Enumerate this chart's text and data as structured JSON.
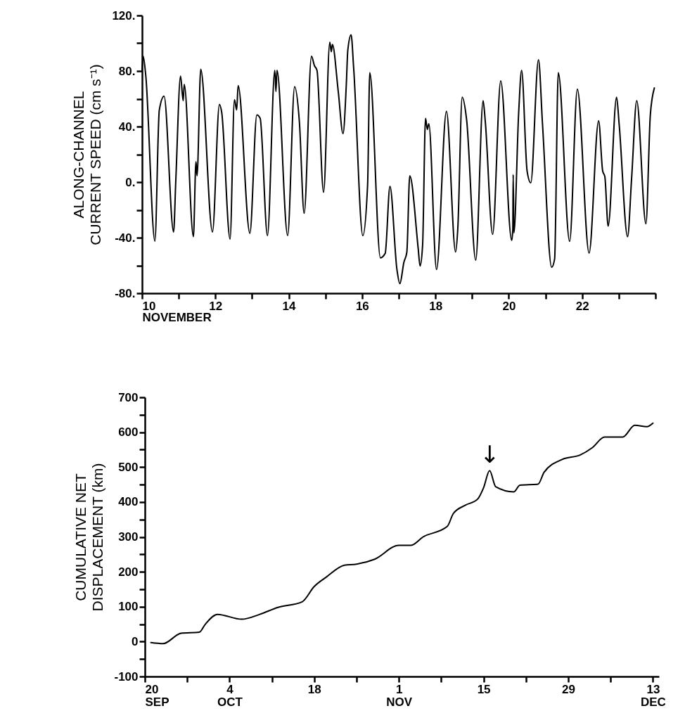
{
  "chart_data": [
    {
      "type": "line",
      "xlabel": "NOVEMBER",
      "ylabel": "ALONG-CHANNEL\nCURRENT SPEED (cm s⁻¹)",
      "color": "#000000",
      "x": [
        10.0,
        10.03,
        10.1,
        10.35,
        10.47,
        10.6,
        10.86,
        10.92,
        11.05,
        11.12,
        11.15,
        11.4,
        11.47,
        11.5,
        11.6,
        11.92,
        12.11,
        12.17,
        12.4,
        12.52,
        12.58,
        12.62,
        12.94,
        13.13,
        13.22,
        13.42,
        13.62,
        13.65,
        13.68,
        13.97,
        14.16,
        14.29,
        14.42,
        14.62,
        14.7,
        14.77,
        14.95,
        15.12,
        15.16,
        15.19,
        15.35,
        15.48,
        15.57,
        15.61,
        15.7,
        15.77,
        16.02,
        16.15,
        16.21,
        16.5,
        16.63,
        16.76,
        16.95,
        17.03,
        17.14,
        17.22,
        17.3,
        17.53,
        17.58,
        17.65,
        17.73,
        17.78,
        17.82,
        18.03,
        18.3,
        18.55,
        18.61,
        18.73,
        18.85,
        19.1,
        19.3,
        19.36,
        19.56,
        19.78,
        20.08,
        20.11,
        20.12,
        20.14,
        20.27,
        20.35,
        20.5,
        20.6,
        20.81,
        20.92,
        21.17,
        21.25,
        21.35,
        21.66,
        21.87,
        22.19,
        22.45,
        22.56,
        22.62,
        22.71,
        22.94,
        23.01,
        23.24,
        23.35,
        23.49,
        23.74,
        23.86,
        23.97
      ],
      "values": [
        80.5,
        90.6,
        77,
        -42.5,
        51.8,
        61.9,
        -35.9,
        1.2,
        76.3,
        58.6,
        70.4,
        -39.3,
        14.7,
        4.6,
        81.3,
        -35.9,
        56,
        50.6,
        -41,
        59.4,
        52,
        69.5,
        -36.8,
        48.4,
        46,
        -38.5,
        80.5,
        65.3,
        80.5,
        -38.5,
        68.7,
        43.4,
        -22.4,
        90.6,
        83.9,
        80.5,
        -7.3,
        100.8,
        93.9,
        99.1,
        65.3,
        34.9,
        70.4,
        94.8,
        106.1,
        82.2,
        -38.5,
        -2.2,
        78.8,
        -54.5,
        -51.3,
        -3,
        -62.9,
        -73.1,
        -57.7,
        -50.5,
        4.6,
        -47.8,
        -60.4,
        -45.5,
        45.9,
        38,
        42,
        -62.9,
        51,
        -50.3,
        -33.4,
        61.1,
        45,
        -56.2,
        58.6,
        43.5,
        -37.6,
        72.9,
        -41.9,
        -34.2,
        5.4,
        -36.6,
        50.1,
        80.5,
        7.9,
        -0.5,
        88.1,
        41.7,
        -61.3,
        -55.4,
        78.8,
        -42.7,
        67,
        -51.1,
        44.2,
        8.1,
        3.9,
        -31.7,
        61.1,
        41.7,
        -39.3,
        2.9,
        58.6,
        -30,
        48.4,
        67.8
      ],
      "xlim": [
        10,
        24
      ],
      "xticks": [
        10,
        {
          "value": 11,
          "label": null
        },
        12,
        {
          "value": 13,
          "label": null
        },
        14,
        {
          "value": 15,
          "label": null
        },
        16,
        {
          "value": 17,
          "label": null
        },
        18,
        {
          "value": 19,
          "label": null
        },
        20,
        {
          "value": 21,
          "label": null
        },
        22,
        {
          "value": 23,
          "label": null
        },
        {
          "value": 24,
          "label": null
        }
      ],
      "ylim": [
        -80,
        120
      ],
      "yticks": [
        {
          "value": -80,
          "label": "-80."
        },
        {
          "value": -60,
          "label": null
        },
        {
          "value": -40,
          "label": "-40."
        },
        {
          "value": -20,
          "label": null
        },
        {
          "value": 0,
          "label": "0."
        },
        {
          "value": 20,
          "label": null
        },
        {
          "value": 40,
          "label": "40."
        },
        {
          "value": 60,
          "label": null
        },
        {
          "value": 80,
          "label": "80."
        },
        {
          "value": 100,
          "label": null
        },
        {
          "value": 120,
          "label": "120."
        }
      ]
    },
    {
      "type": "line",
      "ylabel": "CUMULATIVE NET\nDISPLACEMENT (km)",
      "color": "#000000",
      "x": [
        "--09-21",
        "--09-23",
        "--09-26",
        "--09-29",
        "--09-30",
        "--10-02",
        "--10-06",
        "--10-09",
        "--10-12",
        "--10-16",
        "--10-18",
        "--10-20",
        "--10-23",
        "--10-25",
        "--10-28",
        "--11-01",
        "--11-03",
        "--11-05",
        "--11-09",
        "--11-10",
        "--11-12",
        "--11-14",
        "--11-15",
        "--11-16",
        "--11-17",
        "--11-20",
        "--11-21",
        "--11-24",
        "--11-25",
        "--11-28",
        "--12-01",
        "--12-03",
        "--12-05",
        "--12-08",
        "--12-10",
        "--12-12",
        "--12-13"
      ],
      "values": [
        -3,
        -6,
        24,
        27,
        50,
        78,
        64,
        78,
        98,
        114,
        158,
        185,
        219,
        222,
        236,
        276,
        276,
        300,
        330,
        367,
        391,
        408,
        441,
        490,
        444,
        429,
        448,
        451,
        485,
        522,
        535,
        556,
        586,
        586,
        620,
        616,
        626
      ],
      "annotations": [
        {
          "text": "↓",
          "x": "--11-16",
          "y": 490
        }
      ],
      "xlim": [
        "--09-20",
        "--12-14"
      ],
      "xticks": [
        {
          "value": "--09-20",
          "label": "20\nSEP"
        },
        {
          "value": "--09-27",
          "label": null
        },
        {
          "value": "--10-04",
          "label": "4\nOCT"
        },
        {
          "value": "--10-11",
          "label": null
        },
        {
          "value": "--10-18",
          "label": "18"
        },
        {
          "value": "--10-25",
          "label": null
        },
        {
          "value": "--11-01",
          "label": "1\nNOV"
        },
        {
          "value": "--11-08",
          "label": null
        },
        {
          "value": "--11-15",
          "label": "15"
        },
        {
          "value": "--11-22",
          "label": null
        },
        {
          "value": "--11-29",
          "label": "29"
        },
        {
          "value": "--12-06",
          "label": null
        },
        {
          "value": "--12-13",
          "label": "13\nDEC"
        }
      ],
      "ylim": [
        -100,
        700
      ],
      "yticks": [
        -100,
        {
          "value": -50,
          "label": null
        },
        0,
        {
          "value": 50,
          "label": null
        },
        100,
        {
          "value": 150,
          "label": null
        },
        200,
        {
          "value": 250,
          "label": null
        },
        300,
        {
          "value": 350,
          "label": null
        },
        400,
        {
          "value": 450,
          "label": null
        },
        500,
        {
          "value": 550,
          "label": null
        },
        600,
        {
          "value": 650,
          "label": null
        },
        700
      ]
    }
  ]
}
